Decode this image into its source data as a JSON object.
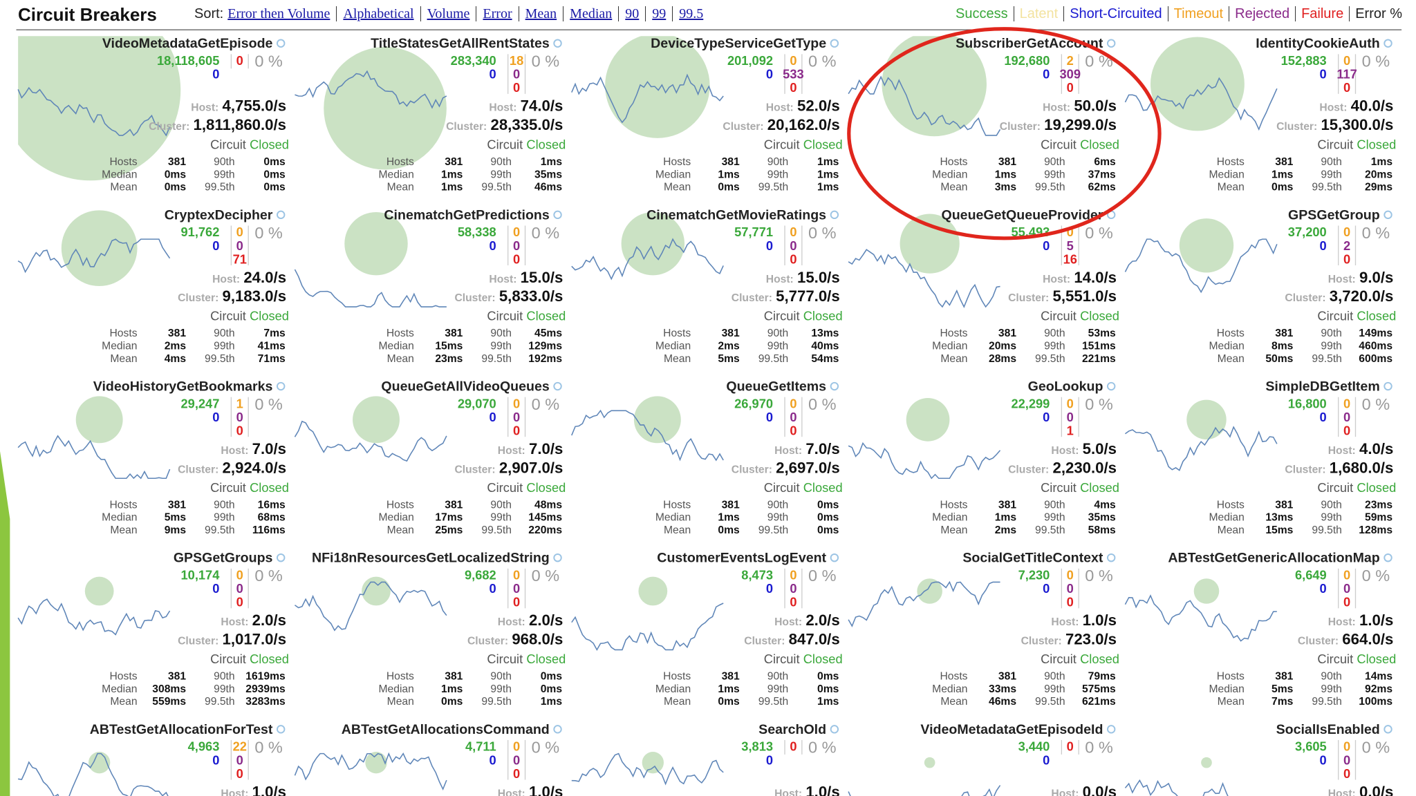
{
  "header": {
    "title": "Circuit Breakers",
    "sort_label": "Sort:",
    "sort_options": [
      "Error then Volume",
      "Alphabetical",
      "Volume",
      "Error",
      "Mean",
      "Median",
      "90",
      "99",
      "99.5"
    ],
    "legend": [
      {
        "text": "Success",
        "kind": "success"
      },
      {
        "text": "Latent",
        "kind": "latent"
      },
      {
        "text": "Short-Circuited",
        "kind": "short"
      },
      {
        "text": "Timeout",
        "kind": "timeout"
      },
      {
        "text": "Rejected",
        "kind": "rejected"
      },
      {
        "text": "Failure",
        "kind": "failure"
      },
      {
        "text": "Error %",
        "kind": "plain"
      }
    ]
  },
  "labels": {
    "host": "Host:",
    "cluster": "Cluster:",
    "circuit": "Circuit",
    "closed": "Closed",
    "hosts": "Hosts",
    "median": "Median",
    "mean": "Mean",
    "p90": "90th",
    "p99": "99th",
    "p995": "99.5th"
  },
  "circuits": [
    {
      "name": "VideoMetadataGetEpisode",
      "success": "18,118,605",
      "short_circuited": "0",
      "counts": [
        {
          "kind": "failure",
          "value": "0"
        }
      ],
      "error": "0 %",
      "host": "4,755.0/s",
      "cluster": "1,811,860.0/s",
      "hosts": "381",
      "median": "0ms",
      "mean": "0ms",
      "p90": "0ms",
      "p99": "0ms",
      "p995": "0ms"
    },
    {
      "name": "TitleStatesGetAllRentStates",
      "success": "283,340",
      "short_circuited": "0",
      "counts": [
        {
          "kind": "timeout",
          "value": "18"
        },
        {
          "kind": "rejected",
          "value": "0"
        },
        {
          "kind": "failure",
          "value": "0"
        }
      ],
      "error": "0 %",
      "host": "74.0/s",
      "cluster": "28,335.0/s",
      "hosts": "381",
      "median": "1ms",
      "mean": "1ms",
      "p90": "1ms",
      "p99": "35ms",
      "p995": "46ms"
    },
    {
      "name": "DeviceTypeServiceGetType",
      "success": "201,092",
      "short_circuited": "0",
      "counts": [
        {
          "kind": "timeout",
          "value": "0"
        },
        {
          "kind": "rejected",
          "value": "533"
        },
        {
          "kind": "failure",
          "value": "0"
        }
      ],
      "error": "0 %",
      "host": "52.0/s",
      "cluster": "20,162.0/s",
      "hosts": "381",
      "median": "1ms",
      "mean": "0ms",
      "p90": "1ms",
      "p99": "1ms",
      "p995": "1ms"
    },
    {
      "name": "SubscriberGetAccount",
      "success": "192,680",
      "short_circuited": "0",
      "counts": [
        {
          "kind": "timeout",
          "value": "2"
        },
        {
          "kind": "rejected",
          "value": "309"
        },
        {
          "kind": "failure",
          "value": "0"
        }
      ],
      "error": "0 %",
      "host": "50.0/s",
      "cluster": "19,299.0/s",
      "hosts": "381",
      "median": "1ms",
      "mean": "3ms",
      "p90": "6ms",
      "p99": "37ms",
      "p995": "62ms"
    },
    {
      "name": "IdentityCookieAuth",
      "success": "152,883",
      "short_circuited": "0",
      "counts": [
        {
          "kind": "timeout",
          "value": "0"
        },
        {
          "kind": "rejected",
          "value": "117"
        },
        {
          "kind": "failure",
          "value": "0"
        }
      ],
      "error": "0 %",
      "host": "40.0/s",
      "cluster": "15,300.0/s",
      "hosts": "381",
      "median": "1ms",
      "mean": "0ms",
      "p90": "1ms",
      "p99": "20ms",
      "p995": "29ms"
    },
    {
      "name": "CryptexDecipher",
      "success": "91,762",
      "short_circuited": "0",
      "counts": [
        {
          "kind": "timeout",
          "value": "0"
        },
        {
          "kind": "rejected",
          "value": "0"
        },
        {
          "kind": "failure",
          "value": "71"
        }
      ],
      "error": "0 %",
      "host": "24.0/s",
      "cluster": "9,183.0/s",
      "hosts": "381",
      "median": "2ms",
      "mean": "4ms",
      "p90": "7ms",
      "p99": "41ms",
      "p995": "71ms"
    },
    {
      "name": "CinematchGetPredictions",
      "success": "58,338",
      "short_circuited": "0",
      "counts": [
        {
          "kind": "timeout",
          "value": "0"
        },
        {
          "kind": "rejected",
          "value": "0"
        },
        {
          "kind": "failure",
          "value": "0"
        }
      ],
      "error": "0 %",
      "host": "15.0/s",
      "cluster": "5,833.0/s",
      "hosts": "381",
      "median": "15ms",
      "mean": "23ms",
      "p90": "45ms",
      "p99": "129ms",
      "p995": "192ms"
    },
    {
      "name": "CinematchGetMovieRatings",
      "success": "57,771",
      "short_circuited": "0",
      "counts": [
        {
          "kind": "timeout",
          "value": "0"
        },
        {
          "kind": "rejected",
          "value": "0"
        },
        {
          "kind": "failure",
          "value": "0"
        }
      ],
      "error": "0 %",
      "host": "15.0/s",
      "cluster": "5,777.0/s",
      "hosts": "381",
      "median": "2ms",
      "mean": "5ms",
      "p90": "13ms",
      "p99": "40ms",
      "p995": "54ms"
    },
    {
      "name": "QueueGetQueueProvider",
      "success": "55,493",
      "short_circuited": "0",
      "counts": [
        {
          "kind": "timeout",
          "value": "0"
        },
        {
          "kind": "rejected",
          "value": "5"
        },
        {
          "kind": "failure",
          "value": "16"
        }
      ],
      "error": "0 %",
      "host": "14.0/s",
      "cluster": "5,551.0/s",
      "hosts": "381",
      "median": "20ms",
      "mean": "28ms",
      "p90": "53ms",
      "p99": "151ms",
      "p995": "221ms"
    },
    {
      "name": "GPSGetGroup",
      "success": "37,200",
      "short_circuited": "0",
      "counts": [
        {
          "kind": "timeout",
          "value": "0"
        },
        {
          "kind": "rejected",
          "value": "2"
        },
        {
          "kind": "failure",
          "value": "0"
        }
      ],
      "error": "0 %",
      "host": "9.0/s",
      "cluster": "3,720.0/s",
      "hosts": "381",
      "median": "8ms",
      "mean": "50ms",
      "p90": "149ms",
      "p99": "460ms",
      "p995": "600ms"
    },
    {
      "name": "VideoHistoryGetBookmarks",
      "success": "29,247",
      "short_circuited": "0",
      "counts": [
        {
          "kind": "timeout",
          "value": "1"
        },
        {
          "kind": "rejected",
          "value": "0"
        },
        {
          "kind": "failure",
          "value": "0"
        }
      ],
      "error": "0 %",
      "host": "7.0/s",
      "cluster": "2,924.0/s",
      "hosts": "381",
      "median": "5ms",
      "mean": "9ms",
      "p90": "16ms",
      "p99": "68ms",
      "p995": "116ms"
    },
    {
      "name": "QueueGetAllVideoQueues",
      "success": "29,070",
      "short_circuited": "0",
      "counts": [
        {
          "kind": "timeout",
          "value": "0"
        },
        {
          "kind": "rejected",
          "value": "0"
        },
        {
          "kind": "failure",
          "value": "0"
        }
      ],
      "error": "0 %",
      "host": "7.0/s",
      "cluster": "2,907.0/s",
      "hosts": "381",
      "median": "17ms",
      "mean": "25ms",
      "p90": "48ms",
      "p99": "145ms",
      "p995": "220ms"
    },
    {
      "name": "QueueGetItems",
      "success": "26,970",
      "short_circuited": "0",
      "counts": [
        {
          "kind": "timeout",
          "value": "0"
        },
        {
          "kind": "rejected",
          "value": "0"
        },
        {
          "kind": "failure",
          "value": "0"
        }
      ],
      "error": "0 %",
      "host": "7.0/s",
      "cluster": "2,697.0/s",
      "hosts": "381",
      "median": "1ms",
      "mean": "0ms",
      "p90": "0ms",
      "p99": "0ms",
      "p995": "0ms"
    },
    {
      "name": "GeoLookup",
      "success": "22,299",
      "short_circuited": "0",
      "counts": [
        {
          "kind": "timeout",
          "value": "0"
        },
        {
          "kind": "rejected",
          "value": "0"
        },
        {
          "kind": "failure",
          "value": "1"
        }
      ],
      "error": "0 %",
      "host": "5.0/s",
      "cluster": "2,230.0/s",
      "hosts": "381",
      "median": "1ms",
      "mean": "2ms",
      "p90": "4ms",
      "p99": "35ms",
      "p995": "58ms"
    },
    {
      "name": "SimpleDBGetItem",
      "success": "16,800",
      "short_circuited": "0",
      "counts": [
        {
          "kind": "timeout",
          "value": "0"
        },
        {
          "kind": "rejected",
          "value": "0"
        },
        {
          "kind": "failure",
          "value": "0"
        }
      ],
      "error": "0 %",
      "host": "4.0/s",
      "cluster": "1,680.0/s",
      "hosts": "381",
      "median": "13ms",
      "mean": "15ms",
      "p90": "23ms",
      "p99": "59ms",
      "p995": "128ms"
    },
    {
      "name": "GPSGetGroups",
      "success": "10,174",
      "short_circuited": "0",
      "counts": [
        {
          "kind": "timeout",
          "value": "0"
        },
        {
          "kind": "rejected",
          "value": "0"
        },
        {
          "kind": "failure",
          "value": "0"
        }
      ],
      "error": "0 %",
      "host": "2.0/s",
      "cluster": "1,017.0/s",
      "hosts": "381",
      "median": "308ms",
      "mean": "559ms",
      "p90": "1619ms",
      "p99": "2939ms",
      "p995": "3283ms"
    },
    {
      "name": "NFi18nResourcesGetLocalizedString",
      "success": "9,682",
      "short_circuited": "0",
      "counts": [
        {
          "kind": "timeout",
          "value": "0"
        },
        {
          "kind": "rejected",
          "value": "0"
        },
        {
          "kind": "failure",
          "value": "0"
        }
      ],
      "error": "0 %",
      "host": "2.0/s",
      "cluster": "968.0/s",
      "hosts": "381",
      "median": "1ms",
      "mean": "0ms",
      "p90": "0ms",
      "p99": "0ms",
      "p995": "1ms"
    },
    {
      "name": "CustomerEventsLogEvent",
      "success": "8,473",
      "short_circuited": "0",
      "counts": [
        {
          "kind": "timeout",
          "value": "0"
        },
        {
          "kind": "rejected",
          "value": "0"
        },
        {
          "kind": "failure",
          "value": "0"
        }
      ],
      "error": "0 %",
      "host": "2.0/s",
      "cluster": "847.0/s",
      "hosts": "381",
      "median": "1ms",
      "mean": "0ms",
      "p90": "0ms",
      "p99": "0ms",
      "p995": "1ms"
    },
    {
      "name": "SocialGetTitleContext",
      "success": "7,230",
      "short_circuited": "0",
      "counts": [
        {
          "kind": "timeout",
          "value": "0"
        },
        {
          "kind": "rejected",
          "value": "0"
        },
        {
          "kind": "failure",
          "value": "0"
        }
      ],
      "error": "0 %",
      "host": "1.0/s",
      "cluster": "723.0/s",
      "hosts": "381",
      "median": "33ms",
      "mean": "46ms",
      "p90": "79ms",
      "p99": "575ms",
      "p995": "621ms"
    },
    {
      "name": "ABTestGetGenericAllocationMap",
      "success": "6,649",
      "short_circuited": "0",
      "counts": [
        {
          "kind": "timeout",
          "value": "0"
        },
        {
          "kind": "rejected",
          "value": "0"
        },
        {
          "kind": "failure",
          "value": "0"
        }
      ],
      "error": "0 %",
      "host": "1.0/s",
      "cluster": "664.0/s",
      "hosts": "381",
      "median": "5ms",
      "mean": "7ms",
      "p90": "14ms",
      "p99": "92ms",
      "p995": "100ms"
    },
    {
      "name": "ABTestGetAllocationForTest",
      "success": "4,963",
      "short_circuited": "0",
      "counts": [
        {
          "kind": "timeout",
          "value": "22"
        },
        {
          "kind": "rejected",
          "value": "0"
        },
        {
          "kind": "failure",
          "value": "0"
        }
      ],
      "error": "0 %",
      "host": "1.0/s"
    },
    {
      "name": "ABTestGetAllocationsCommand",
      "success": "4,711",
      "short_circuited": "0",
      "counts": [
        {
          "kind": "timeout",
          "value": "0"
        },
        {
          "kind": "rejected",
          "value": "0"
        },
        {
          "kind": "failure",
          "value": "0"
        }
      ],
      "error": "0 %",
      "host": "1.0/s"
    },
    {
      "name": "SearchOld",
      "success": "3,813",
      "short_circuited": "0",
      "counts": [
        {
          "kind": "failure",
          "value": "0"
        }
      ],
      "error": "0 %",
      "host": "1.0/s"
    },
    {
      "name": "VideoMetadataGetEpisodeId",
      "success": "3,440",
      "short_circuited": "0",
      "counts": [
        {
          "kind": "failure",
          "value": "0"
        }
      ],
      "error": "0 %",
      "host": "0.0/s"
    },
    {
      "name": "SocialIsEnabled",
      "success": "3,605",
      "short_circuited": "0",
      "counts": [
        {
          "kind": "timeout",
          "value": "0"
        },
        {
          "kind": "rejected",
          "value": "0"
        },
        {
          "kind": "failure",
          "value": "0"
        }
      ],
      "error": "0 %",
      "host": "0.0/s"
    }
  ]
}
